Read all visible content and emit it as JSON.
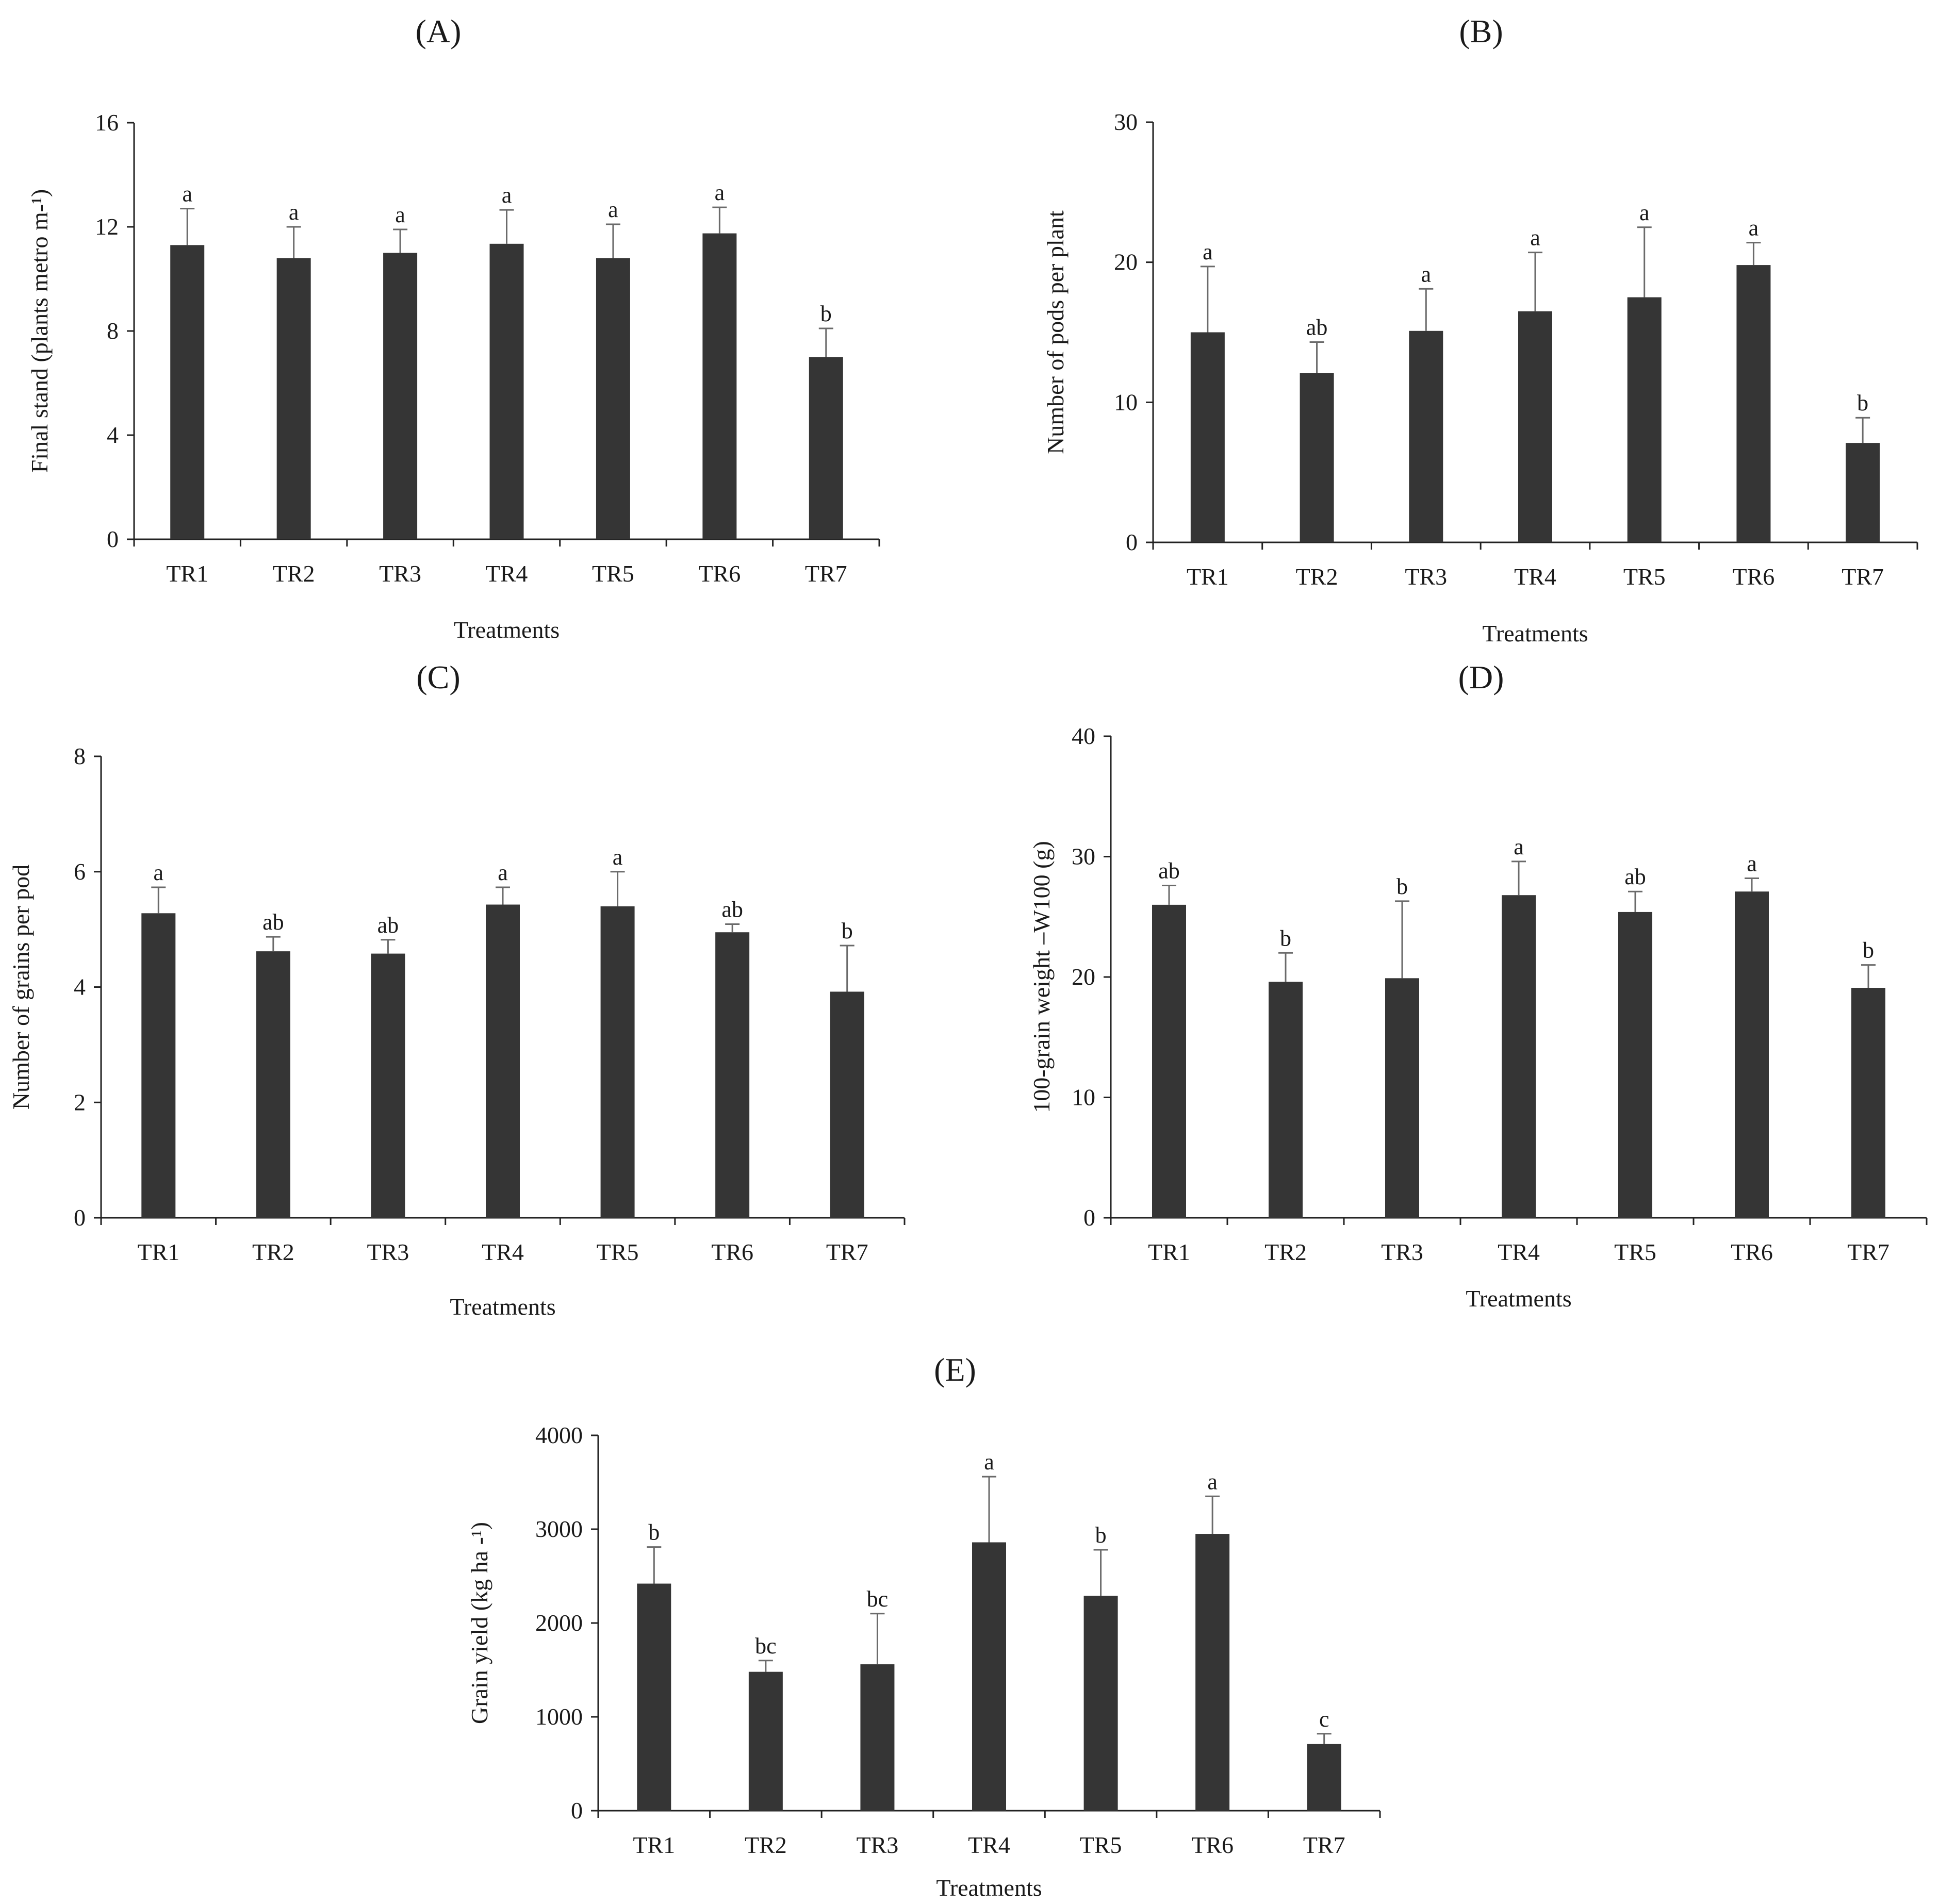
{
  "colors": {
    "bar": "#353535",
    "axis": "#222222",
    "error": "#6a6a6a",
    "text": "#1a1a1a"
  },
  "chart_data": [
    {
      "panel": "(A)",
      "type": "bar",
      "title": "(A)",
      "xlabel": "Treatments",
      "ylabel": "Final stand (plants metro m-¹)",
      "categories": [
        "TR1",
        "TR2",
        "TR3",
        "TR4",
        "TR5",
        "TR6",
        "TR7"
      ],
      "values": [
        11.3,
        10.8,
        11.0,
        11.35,
        10.8,
        11.75,
        7.0
      ],
      "errors": [
        1.4,
        1.2,
        0.9,
        1.3,
        1.3,
        1.0,
        1.1
      ],
      "letters": [
        "a",
        "a",
        "a",
        "a",
        "a",
        "a",
        "b"
      ],
      "ylim": [
        0,
        16
      ],
      "yticks": [
        "0",
        "4",
        "8",
        "12",
        "16"
      ]
    },
    {
      "panel": "(B)",
      "type": "bar",
      "title": "(B)",
      "xlabel": "Treatments",
      "ylabel": "Number of pods per plant",
      "categories": [
        "TR1",
        "TR2",
        "TR3",
        "TR4",
        "TR5",
        "TR6",
        "TR7"
      ],
      "values": [
        15.0,
        12.1,
        15.1,
        16.5,
        17.5,
        19.8,
        7.1
      ],
      "errors": [
        4.7,
        2.2,
        3.0,
        4.2,
        5.0,
        1.6,
        1.8
      ],
      "letters": [
        "a",
        "ab",
        "a",
        "a",
        "a",
        "a",
        "b"
      ],
      "ylim": [
        0,
        30
      ],
      "yticks": [
        "0",
        "10",
        "20",
        "30"
      ]
    },
    {
      "panel": "(C)",
      "type": "bar",
      "title": "(C)",
      "xlabel": "Treatments",
      "ylabel": "Number of grains per pod",
      "categories": [
        "TR1",
        "TR2",
        "TR3",
        "TR4",
        "TR5",
        "TR6",
        "TR7"
      ],
      "values": [
        5.28,
        4.62,
        4.58,
        5.43,
        5.4,
        4.95,
        3.92
      ],
      "errors": [
        0.45,
        0.25,
        0.24,
        0.3,
        0.6,
        0.14,
        0.8
      ],
      "letters": [
        "a",
        "ab",
        "ab",
        "a",
        "a",
        "ab",
        "b"
      ],
      "ylim": [
        0,
        8
      ],
      "yticks": [
        "0",
        "2",
        "4",
        "6",
        "8"
      ]
    },
    {
      "panel": "(D)",
      "type": "bar",
      "title": "(D)",
      "xlabel": "Treatments",
      "ylabel": "100-grain weight –W100 (g)",
      "categories": [
        "TR1",
        "TR2",
        "TR3",
        "TR4",
        "TR5",
        "TR6",
        "TR7"
      ],
      "values": [
        26.0,
        19.6,
        19.9,
        26.8,
        25.4,
        27.1,
        19.1
      ],
      "errors": [
        1.6,
        2.4,
        6.4,
        2.8,
        1.7,
        1.1,
        1.9
      ],
      "letters": [
        "ab",
        "b",
        "b",
        "a",
        "ab",
        "a",
        "b"
      ],
      "ylim": [
        0,
        40
      ],
      "yticks": [
        "0",
        "10",
        "20",
        "30",
        "40"
      ]
    },
    {
      "panel": "(E)",
      "type": "bar",
      "title": "(E)",
      "xlabel": "Treatments",
      "ylabel": "Grain yield  (kg ha -¹)",
      "categories": [
        "TR1",
        "TR2",
        "TR3",
        "TR4",
        "TR5",
        "TR6",
        "TR7"
      ],
      "values": [
        2420,
        1480,
        1560,
        2860,
        2290,
        2950,
        710
      ],
      "errors": [
        390,
        120,
        540,
        700,
        490,
        400,
        110
      ],
      "letters": [
        "b",
        "bc",
        "bc",
        "a",
        "b",
        "a",
        "c"
      ],
      "ylim": [
        0,
        4000
      ],
      "yticks": [
        "0",
        "1000",
        "2000",
        "3000",
        "4000"
      ]
    }
  ]
}
